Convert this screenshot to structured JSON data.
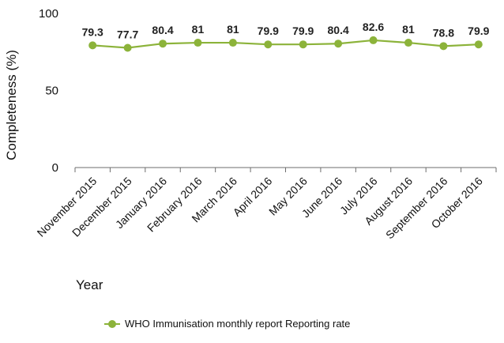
{
  "chart_data": {
    "type": "line",
    "title": "",
    "xlabel": "Year",
    "ylabel": "Completeness (%)",
    "ylim": [
      0,
      100
    ],
    "yticks": [
      0,
      50,
      100
    ],
    "grid": false,
    "legend_position": "bottom",
    "categories": [
      "November 2015",
      "December 2015",
      "January 2016",
      "February 2016",
      "March 2016",
      "April 2016",
      "May 2016",
      "June 2016",
      "July 2016",
      "August 2016",
      "September 2016",
      "October 2016"
    ],
    "series": [
      {
        "name": "WHO Immunisation monthly report Reporting rate",
        "color": "#8cb33a",
        "values": [
          79.3,
          77.7,
          80.4,
          81,
          81,
          79.9,
          79.9,
          80.4,
          82.6,
          81,
          78.8,
          79.9
        ],
        "value_labels": [
          "79.3",
          "77.7",
          "80.4",
          "81",
          "81",
          "79.9",
          "79.9",
          "80.4",
          "82.6",
          "81",
          "78.8",
          "79.9"
        ]
      }
    ]
  }
}
